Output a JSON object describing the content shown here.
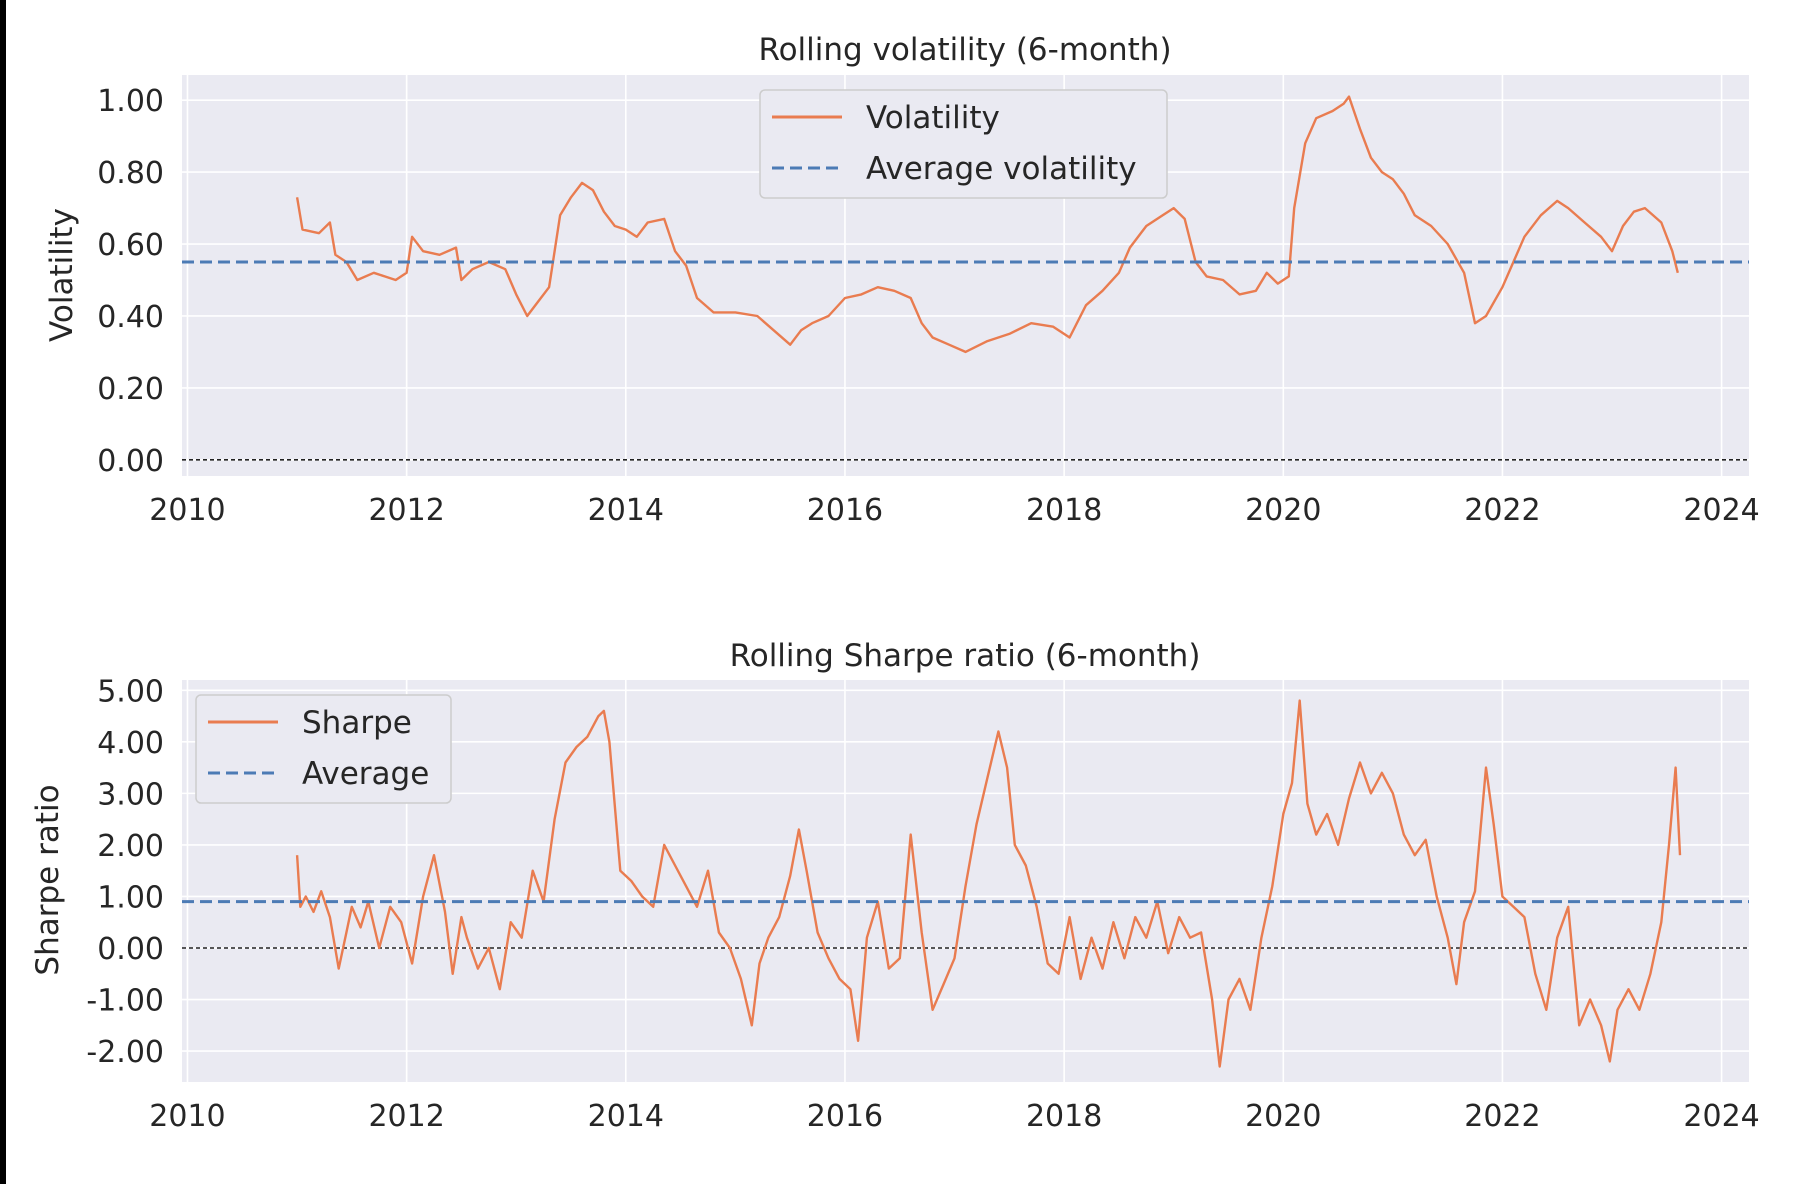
{
  "chart_data": [
    {
      "type": "line",
      "title": "Rolling volatility (6-month)",
      "xlabel": "",
      "ylabel": "Volatility",
      "xlim": [
        2009.95,
        2024.25
      ],
      "ylim": [
        -0.045,
        1.07
      ],
      "x_ticks": [
        2010,
        2012,
        2014,
        2016,
        2018,
        2020,
        2022,
        2024
      ],
      "x_tick_labels": [
        "2010",
        "2012",
        "2014",
        "2016",
        "2018",
        "2020",
        "2022",
        "2024"
      ],
      "y_ticks": [
        0.0,
        0.2,
        0.4,
        0.6,
        0.8,
        1.0
      ],
      "y_tick_labels": [
        "0.00",
        "0.20",
        "0.40",
        "0.60",
        "0.80",
        "1.00"
      ],
      "grid": true,
      "legend_position": "top-center",
      "zero_line": 0.0,
      "colors": {
        "series": "#e97c50",
        "average": "#4c7bb5",
        "zero": "#222222",
        "plot_bg": "#eaeaf2"
      },
      "series": [
        {
          "name": "Volatility",
          "style": "solid",
          "x": [
            2011.0,
            2011.05,
            2011.2,
            2011.3,
            2011.35,
            2011.45,
            2011.55,
            2011.7,
            2011.8,
            2011.9,
            2012.0,
            2012.05,
            2012.15,
            2012.3,
            2012.45,
            2012.5,
            2012.6,
            2012.75,
            2012.9,
            2013.0,
            2013.1,
            2013.2,
            2013.3,
            2013.4,
            2013.5,
            2013.6,
            2013.7,
            2013.8,
            2013.9,
            2014.0,
            2014.1,
            2014.2,
            2014.35,
            2014.45,
            2014.55,
            2014.65,
            2014.8,
            2015.0,
            2015.2,
            2015.35,
            2015.5,
            2015.6,
            2015.7,
            2015.85,
            2016.0,
            2016.15,
            2016.3,
            2016.45,
            2016.6,
            2016.7,
            2016.8,
            2016.95,
            2017.1,
            2017.3,
            2017.5,
            2017.7,
            2017.9,
            2018.05,
            2018.2,
            2018.35,
            2018.5,
            2018.6,
            2018.75,
            2018.9,
            2019.0,
            2019.1,
            2019.2,
            2019.3,
            2019.45,
            2019.6,
            2019.75,
            2019.85,
            2019.95,
            2020.05,
            2020.1,
            2020.2,
            2020.3,
            2020.45,
            2020.55,
            2020.6,
            2020.7,
            2020.8,
            2020.9,
            2021.0,
            2021.1,
            2021.2,
            2021.35,
            2021.5,
            2021.65,
            2021.75,
            2021.85,
            2022.0,
            2022.1,
            2022.2,
            2022.35,
            2022.5,
            2022.6,
            2022.75,
            2022.9,
            2023.0,
            2023.1,
            2023.2,
            2023.3,
            2023.45,
            2023.55,
            2023.6
          ],
          "y": [
            0.73,
            0.64,
            0.63,
            0.66,
            0.57,
            0.55,
            0.5,
            0.52,
            0.51,
            0.5,
            0.52,
            0.62,
            0.58,
            0.57,
            0.59,
            0.5,
            0.53,
            0.55,
            0.53,
            0.46,
            0.4,
            0.44,
            0.48,
            0.68,
            0.73,
            0.77,
            0.75,
            0.69,
            0.65,
            0.64,
            0.62,
            0.66,
            0.67,
            0.58,
            0.54,
            0.45,
            0.41,
            0.41,
            0.4,
            0.36,
            0.32,
            0.36,
            0.38,
            0.4,
            0.45,
            0.46,
            0.48,
            0.47,
            0.45,
            0.38,
            0.34,
            0.32,
            0.3,
            0.33,
            0.35,
            0.38,
            0.37,
            0.34,
            0.43,
            0.47,
            0.52,
            0.59,
            0.65,
            0.68,
            0.7,
            0.67,
            0.55,
            0.51,
            0.5,
            0.46,
            0.47,
            0.52,
            0.49,
            0.51,
            0.7,
            0.88,
            0.95,
            0.97,
            0.99,
            1.01,
            0.92,
            0.84,
            0.8,
            0.78,
            0.74,
            0.68,
            0.65,
            0.6,
            0.52,
            0.38,
            0.4,
            0.48,
            0.55,
            0.62,
            0.68,
            0.72,
            0.7,
            0.66,
            0.62,
            0.58,
            0.65,
            0.69,
            0.7,
            0.66,
            0.58,
            0.52
          ]
        },
        {
          "name": "Average volatility",
          "style": "dashed",
          "x": [
            2009.95,
            2024.25
          ],
          "y": [
            0.55,
            0.55
          ]
        }
      ]
    },
    {
      "type": "line",
      "title": "Rolling Sharpe ratio (6-month)",
      "xlabel": "",
      "ylabel": "Sharpe ratio",
      "xlim": [
        2009.95,
        2024.25
      ],
      "ylim": [
        -2.6,
        5.2
      ],
      "x_ticks": [
        2010,
        2012,
        2014,
        2016,
        2018,
        2020,
        2022,
        2024
      ],
      "x_tick_labels": [
        "2010",
        "2012",
        "2014",
        "2016",
        "2018",
        "2020",
        "2022",
        "2024"
      ],
      "y_ticks": [
        -2,
        -1,
        0,
        1,
        2,
        3,
        4,
        5
      ],
      "y_tick_labels": [
        "-2.00",
        "-1.00",
        "0.00",
        "1.00",
        "2.00",
        "3.00",
        "4.00",
        "5.00"
      ],
      "grid": true,
      "legend_position": "top-left",
      "zero_line": 0.0,
      "colors": {
        "series": "#e97c50",
        "average": "#4c7bb5",
        "zero": "#222222",
        "plot_bg": "#eaeaf2"
      },
      "series": [
        {
          "name": "Sharpe",
          "style": "solid",
          "x": [
            2011.0,
            2011.03,
            2011.08,
            2011.15,
            2011.22,
            2011.3,
            2011.38,
            2011.45,
            2011.5,
            2011.58,
            2011.65,
            2011.75,
            2011.85,
            2011.95,
            2012.05,
            2012.15,
            2012.25,
            2012.35,
            2012.42,
            2012.5,
            2012.55,
            2012.65,
            2012.75,
            2012.85,
            2012.95,
            2013.05,
            2013.15,
            2013.25,
            2013.35,
            2013.45,
            2013.55,
            2013.65,
            2013.75,
            2013.8,
            2013.85,
            2013.95,
            2014.05,
            2014.15,
            2014.25,
            2014.35,
            2014.45,
            2014.55,
            2014.65,
            2014.75,
            2014.85,
            2014.95,
            2015.05,
            2015.15,
            2015.22,
            2015.3,
            2015.4,
            2015.5,
            2015.58,
            2015.65,
            2015.75,
            2015.85,
            2015.95,
            2016.05,
            2016.12,
            2016.2,
            2016.3,
            2016.4,
            2016.5,
            2016.6,
            2016.7,
            2016.8,
            2016.9,
            2017.0,
            2017.1,
            2017.2,
            2017.3,
            2017.4,
            2017.48,
            2017.55,
            2017.65,
            2017.75,
            2017.85,
            2017.95,
            2018.05,
            2018.15,
            2018.25,
            2018.35,
            2018.45,
            2018.55,
            2018.65,
            2018.75,
            2018.85,
            2018.95,
            2019.05,
            2019.15,
            2019.25,
            2019.35,
            2019.42,
            2019.5,
            2019.6,
            2019.7,
            2019.8,
            2019.9,
            2020.0,
            2020.08,
            2020.15,
            2020.22,
            2020.3,
            2020.4,
            2020.5,
            2020.6,
            2020.7,
            2020.8,
            2020.9,
            2021.0,
            2021.1,
            2021.2,
            2021.3,
            2021.4,
            2021.5,
            2021.58,
            2021.65,
            2021.75,
            2021.85,
            2021.92,
            2022.0,
            2022.1,
            2022.2,
            2022.3,
            2022.4,
            2022.5,
            2022.6,
            2022.7,
            2022.8,
            2022.9,
            2022.98,
            2023.05,
            2023.15,
            2023.25,
            2023.35,
            2023.45,
            2023.52,
            2023.58,
            2023.62
          ],
          "y": [
            1.8,
            0.8,
            1.0,
            0.7,
            1.1,
            0.6,
            -0.4,
            0.3,
            0.8,
            0.4,
            0.9,
            0.0,
            0.8,
            0.5,
            -0.3,
            1.0,
            1.8,
            0.7,
            -0.5,
            0.6,
            0.2,
            -0.4,
            0.0,
            -0.8,
            0.5,
            0.2,
            1.5,
            0.9,
            2.5,
            3.6,
            3.9,
            4.1,
            4.5,
            4.6,
            4.0,
            1.5,
            1.3,
            1.0,
            0.8,
            2.0,
            1.6,
            1.2,
            0.8,
            1.5,
            0.3,
            0.0,
            -0.6,
            -1.5,
            -0.3,
            0.2,
            0.6,
            1.4,
            2.3,
            1.5,
            0.3,
            -0.2,
            -0.6,
            -0.8,
            -1.8,
            0.2,
            0.9,
            -0.4,
            -0.2,
            2.2,
            0.3,
            -1.2,
            -0.7,
            -0.2,
            1.2,
            2.4,
            3.3,
            4.2,
            3.5,
            2.0,
            1.6,
            0.8,
            -0.3,
            -0.5,
            0.6,
            -0.6,
            0.2,
            -0.4,
            0.5,
            -0.2,
            0.6,
            0.2,
            0.9,
            -0.1,
            0.6,
            0.2,
            0.3,
            -1.0,
            -2.3,
            -1.0,
            -0.6,
            -1.2,
            0.2,
            1.2,
            2.6,
            3.2,
            4.8,
            2.8,
            2.2,
            2.6,
            2.0,
            2.9,
            3.6,
            3.0,
            3.4,
            3.0,
            2.2,
            1.8,
            2.1,
            1.0,
            0.2,
            -0.7,
            0.5,
            1.1,
            3.5,
            2.4,
            1.0,
            0.8,
            0.6,
            -0.5,
            -1.2,
            0.2,
            0.8,
            -1.5,
            -1.0,
            -1.5,
            -2.2,
            -1.2,
            -0.8,
            -1.2,
            -0.5,
            0.5,
            2.0,
            3.5,
            1.8
          ]
        },
        {
          "name": "Average",
          "style": "dashed",
          "x": [
            2009.95,
            2024.25
          ],
          "y": [
            0.9,
            0.9
          ]
        }
      ]
    }
  ]
}
